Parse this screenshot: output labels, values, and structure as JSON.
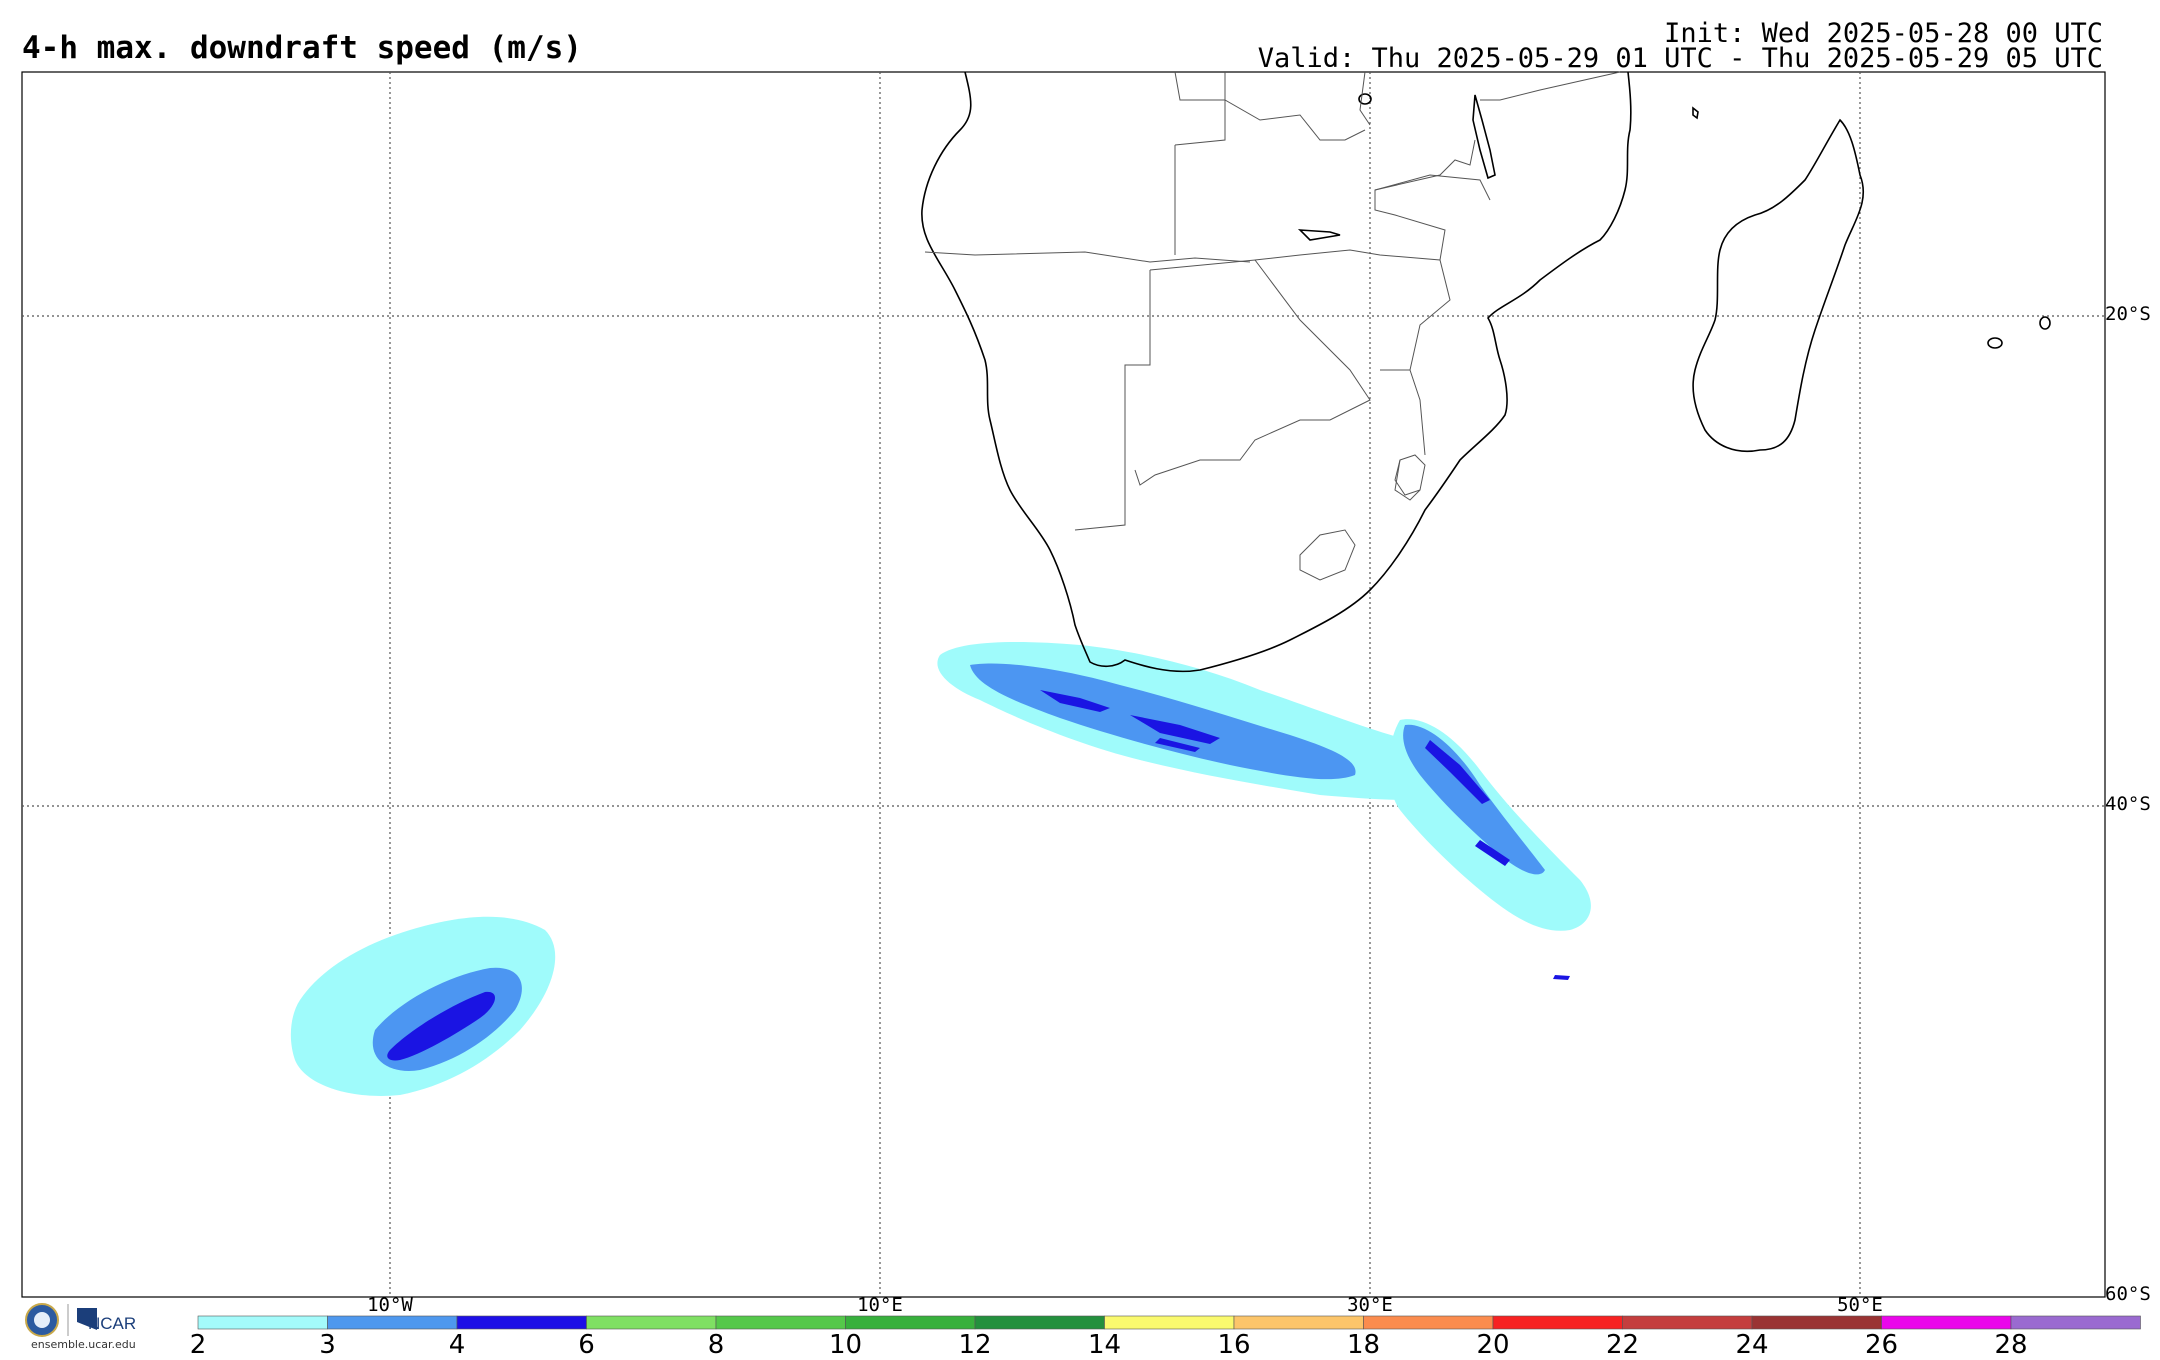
{
  "header": {
    "title": "4-h max. downdraft speed (m/s)",
    "init": "Init: Wed 2025-05-28 00 UTC",
    "valid": "Valid: Thu 2025-05-29 01 UTC - Thu 2025-05-29 05 UTC"
  },
  "map": {
    "lat_labels": [
      "20°S",
      "40°S",
      "60°S"
    ],
    "lon_labels": [
      "10°W",
      "10°E",
      "30°E",
      "50°E"
    ],
    "grid": "on",
    "colors": {
      "level_2": "#9ffbfb",
      "level_3": "#4c96f2",
      "level_4": "#1a14e3"
    }
  },
  "colorbar": {
    "ticks": [
      "2",
      "3",
      "4",
      "6",
      "8",
      "10",
      "12",
      "14",
      "16",
      "18",
      "20",
      "22",
      "24",
      "26",
      "28"
    ],
    "colors": [
      "#a4fbfb",
      "#4e98ee",
      "#1d0fe6",
      "#7fe063",
      "#55c84a",
      "#37b03c",
      "#23903d",
      "#fafa6e",
      "#fcc56a",
      "#fb8c4e",
      "#f72222",
      "#c43e3e",
      "#9a3333",
      "#ea06ea",
      "#9a6ad0"
    ]
  },
  "logo": {
    "brand": "NCAR",
    "url": "ensemble.ucar.edu"
  }
}
